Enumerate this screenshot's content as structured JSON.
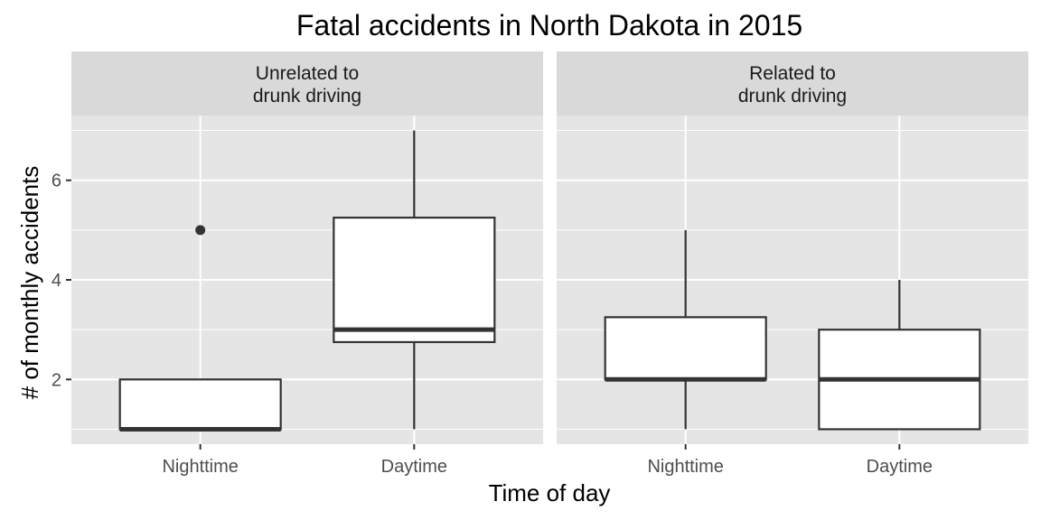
{
  "chart_data": {
    "type": "boxplot",
    "title": "Fatal accidents in North Dakota in 2015",
    "xlabel": "Time of day",
    "ylabel": "# of monthly accidents",
    "categories": [
      "Nighttime",
      "Daytime"
    ],
    "y_ticks": [
      2,
      4,
      6
    ],
    "ylim": [
      0.7,
      7.3
    ],
    "facets": [
      {
        "label_lines": [
          "Unrelated to",
          "drunk driving"
        ],
        "boxes": [
          {
            "category": "Nighttime",
            "min": 1,
            "q1": 1,
            "median": 1,
            "q3": 2,
            "max": 2,
            "outliers": [
              5
            ]
          },
          {
            "category": "Daytime",
            "min": 1,
            "q1": 2.75,
            "median": 3,
            "q3": 5.25,
            "max": 7,
            "outliers": []
          }
        ]
      },
      {
        "label_lines": [
          "Related to",
          "drunk driving"
        ],
        "boxes": [
          {
            "category": "Nighttime",
            "min": 1,
            "q1": 2,
            "median": 2,
            "q3": 3.25,
            "max": 5,
            "outliers": []
          },
          {
            "category": "Daytime",
            "min": 1,
            "q1": 1,
            "median": 2,
            "q3": 3,
            "max": 4,
            "outliers": []
          }
        ]
      }
    ],
    "grid": true,
    "legend": "none",
    "colors": {
      "panel_bg": "#e5e5e5",
      "strip_bg": "#d9d9d9",
      "grid": "#ffffff",
      "box_fill": "#ffffff",
      "box_line": "#333333",
      "tick": "#333333"
    }
  }
}
